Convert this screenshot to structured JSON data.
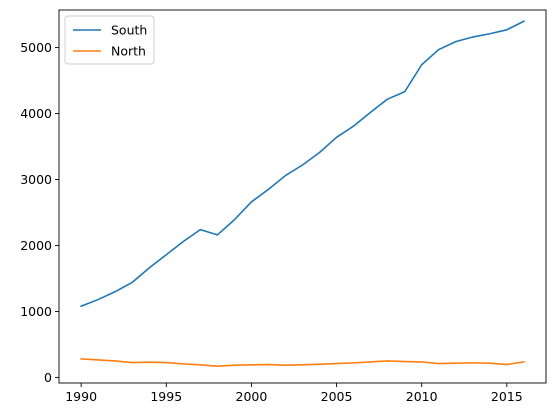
{
  "chart_data": {
    "type": "line",
    "title": "",
    "xlabel": "",
    "ylabel": "",
    "x": [
      1990,
      1991,
      1992,
      1993,
      1994,
      1995,
      1996,
      1997,
      1998,
      1999,
      2000,
      2001,
      2002,
      2003,
      2004,
      2005,
      2006,
      2007,
      2008,
      2009,
      2010,
      2011,
      2012,
      2013,
      2014,
      2015,
      2016
    ],
    "series": [
      {
        "name": "South",
        "color": "#1f77b4",
        "values": [
          1080,
          1180,
          1300,
          1440,
          1660,
          1860,
          2060,
          2240,
          2160,
          2390,
          2660,
          2850,
          3060,
          3220,
          3410,
          3640,
          3810,
          4020,
          4220,
          4330,
          4740,
          4970,
          5090,
          5160,
          5210,
          5270,
          5400
        ]
      },
      {
        "name": "North",
        "color": "#ff7f0e",
        "values": [
          280,
          265,
          250,
          225,
          230,
          225,
          205,
          190,
          170,
          185,
          190,
          195,
          185,
          190,
          200,
          210,
          220,
          235,
          250,
          240,
          235,
          210,
          215,
          220,
          215,
          195,
          235
        ]
      }
    ],
    "xlim": [
      1988.7,
      2017.3
    ],
    "ylim": [
      -85,
      5570
    ],
    "x_ticks": [
      1990,
      1995,
      2000,
      2005,
      2010,
      2015
    ],
    "y_ticks": [
      0,
      1000,
      2000,
      3000,
      4000,
      5000
    ],
    "x_tick_labels": [
      "1990",
      "1995",
      "2000",
      "2005",
      "2010",
      "2015"
    ],
    "y_tick_labels": [
      "0",
      "1000",
      "2000",
      "3000",
      "4000",
      "5000"
    ],
    "grid": false,
    "legend_position": "upper-left"
  }
}
